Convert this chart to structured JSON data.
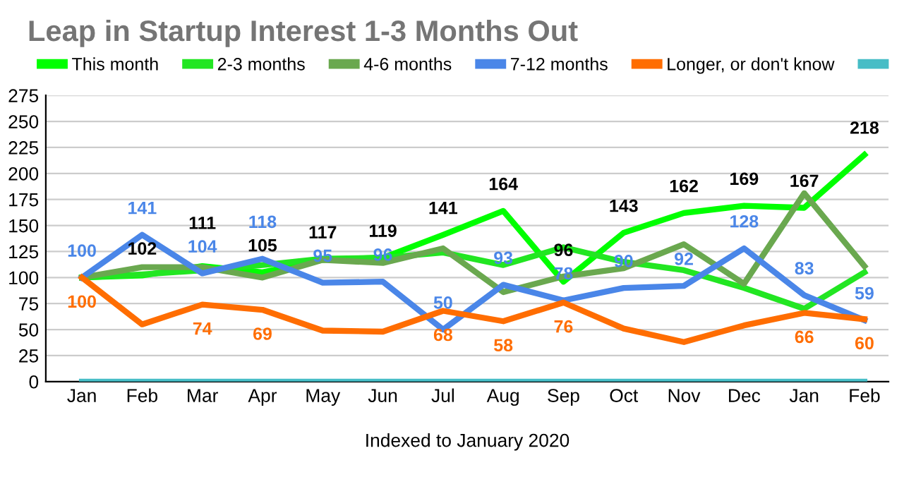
{
  "chart_data": {
    "type": "line",
    "title": "Leap in Startup Interest 1-3 Months Out",
    "xlabel": "Indexed to January 2020",
    "categories": [
      "Jan",
      "Feb",
      "Mar",
      "Apr",
      "May",
      "Jun",
      "Jul",
      "Aug",
      "Sep",
      "Oct",
      "Nov",
      "Dec",
      "Jan",
      "Feb"
    ],
    "series": [
      {
        "name": "This month",
        "color": "#00ff00",
        "values": [
          100,
          102,
          111,
          105,
          117,
          119,
          141,
          164,
          96,
          143,
          162,
          169,
          167,
          218
        ],
        "value_labels": [
          null,
          "102",
          "111",
          "105",
          "117",
          "119",
          "141",
          "164",
          "96",
          "143",
          "162",
          "169",
          "167",
          "218"
        ]
      },
      {
        "name": "2-3 months",
        "color": "#22e622",
        "values": [
          100,
          103,
          107,
          112,
          118,
          119,
          124,
          112,
          129,
          115,
          107,
          90,
          70,
          105
        ]
      },
      {
        "name": "4-6 months",
        "color": "#6aa84f",
        "values": [
          100,
          110,
          110,
          100,
          117,
          114,
          128,
          86,
          101,
          109,
          132,
          94,
          181,
          111
        ]
      },
      {
        "name": "7-12 months",
        "color": "#4a86e8",
        "values": [
          100,
          141,
          104,
          118,
          95,
          96,
          50,
          93,
          78,
          90,
          92,
          128,
          83,
          59
        ],
        "value_labels": [
          "100",
          "141",
          "104",
          "118",
          "95",
          "96",
          "50",
          "93",
          "78",
          "90",
          "92",
          "128",
          "83",
          "59"
        ]
      },
      {
        "name": "Longer, or don't know",
        "color": "#ff6d01",
        "values": [
          100,
          55,
          74,
          69,
          49,
          48,
          68,
          58,
          76,
          51,
          38,
          54,
          66,
          60
        ],
        "value_labels": [
          "100",
          null,
          "74",
          "69",
          null,
          null,
          "68",
          "58",
          "76",
          null,
          null,
          null,
          "66",
          "60"
        ]
      },
      {
        "color": "#46bdc6",
        "values": [
          0,
          0,
          0,
          0,
          0,
          0,
          0,
          0,
          0,
          0,
          0,
          0,
          0,
          0
        ]
      }
    ],
    "ylim": [
      0,
      275
    ],
    "yticks": [
      0,
      25,
      50,
      75,
      100,
      125,
      150,
      175,
      200,
      225,
      250,
      275
    ],
    "grid": "y",
    "legend": "top",
    "line_style": "solid",
    "marker": "none"
  }
}
